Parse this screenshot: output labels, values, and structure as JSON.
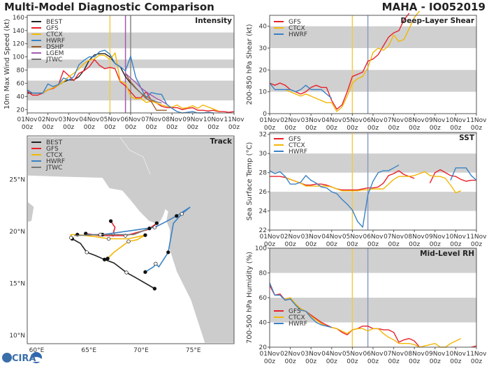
{
  "title": "Multi-Model Diagnostic Comparison",
  "storm": "MAHA - IO052019",
  "logo": "CIRA",
  "x_tick_labels": [
    [
      "01Nov",
      "00z"
    ],
    [
      "02Nov",
      "00z"
    ],
    [
      "03Nov",
      "00z"
    ],
    [
      "04Nov",
      "00z"
    ],
    [
      "05Nov",
      "00z"
    ],
    [
      "06Nov",
      "00z"
    ],
    [
      "07Nov",
      "00z"
    ],
    [
      "08Nov",
      "00z"
    ],
    [
      "09Nov",
      "00z"
    ],
    [
      "10Nov",
      "00z"
    ],
    [
      "11Nov",
      "00z"
    ]
  ],
  "colors": {
    "BEST": "#222222",
    "GFS": "#e8202a",
    "CTCX": "#f2b705",
    "HWRF": "#3a82c4",
    "DSHP": "#9a5a2a",
    "LGEM": "#a45ab0",
    "JTWC": "#777777",
    "band": "#d0d0d0",
    "land": "#cccccc"
  },
  "chart_data": [
    {
      "type": "line",
      "panel": "Intensity",
      "ylabel": "10m Max Wind Speed (kt)",
      "xlim": [
        "2019-11-01T00",
        "2019-11-11T00"
      ],
      "ylim": [
        15,
        163
      ],
      "yticks": [
        20,
        40,
        60,
        80,
        100,
        120,
        140,
        160
      ],
      "vlines": [
        {
          "time": "2019-11-05T00",
          "color": "#f2c94c"
        },
        {
          "time": "2019-11-05T18",
          "color": "#a45ab0"
        },
        {
          "time": "2019-11-06T00",
          "color": "#888888"
        }
      ],
      "series": [
        {
          "name": "BEST",
          "start": "2019-11-01T00",
          "step_hours": 6,
          "values": [
            45,
            45,
            45,
            45,
            50,
            53,
            57,
            62,
            65,
            65,
            70,
            80,
            95,
            103,
            105,
            105,
            100,
            90,
            85,
            70,
            60
          ]
        },
        {
          "name": "GFS",
          "start": "2019-11-01T00",
          "step_hours": 6,
          "values": [
            48,
            42,
            42,
            45,
            50,
            52,
            57,
            79,
            72,
            64,
            75,
            79,
            85,
            96,
            87,
            82,
            84,
            82,
            62,
            56,
            47,
            38,
            38,
            47,
            34,
            30,
            25,
            23,
            23,
            23,
            20,
            22,
            23,
            19,
            19,
            18,
            19,
            17,
            17,
            16,
            17
          ]
        },
        {
          "name": "CTCX",
          "start": "2019-11-01T18",
          "step_hours": 6,
          "values": [
            45,
            50,
            53,
            57,
            62,
            70,
            75,
            82,
            90,
            95,
            97,
            103,
            102,
            96,
            106,
            63,
            60,
            40,
            36,
            37,
            31,
            33,
            30,
            27,
            25,
            24,
            27,
            22,
            23,
            26,
            22,
            27,
            24,
            21,
            18
          ]
        },
        {
          "name": "HWRF",
          "start": "2019-11-01T00",
          "step_hours": 6,
          "values": [
            50,
            45,
            45,
            45,
            59,
            55,
            58,
            68,
            65,
            70,
            88,
            95,
            100,
            100,
            108,
            110,
            104,
            90,
            85,
            79,
            101,
            69,
            53,
            38,
            46,
            44,
            43,
            28,
            22,
            17,
            15,
            16,
            17,
            15,
            15,
            16,
            15
          ]
        },
        {
          "name": "DSHP",
          "start": "2019-11-05T18",
          "step_hours": 6,
          "values": [
            75,
            62,
            53,
            45,
            37,
            32,
            19,
            19,
            19
          ]
        },
        {
          "name": "LGEM",
          "start": "2019-11-05T18",
          "step_hours": 6,
          "values": [
            75,
            68,
            61,
            53,
            47,
            42,
            37,
            33,
            28
          ]
        },
        {
          "name": "JTWC",
          "start": "2019-11-06T00",
          "step_hours": 6,
          "values": [
            60,
            52,
            45,
            40,
            35,
            32,
            30
          ]
        }
      ]
    },
    {
      "type": "line",
      "panel": "Deep-Layer Shear",
      "ylabel": "200-850 hPa Shear (kt)",
      "xlim": [
        "2019-11-01T00",
        "2019-11-11T00"
      ],
      "ylim": [
        0,
        45
      ],
      "yticks": [
        0,
        10,
        20,
        30,
        40
      ],
      "vlines": [
        {
          "time": "2019-11-05T00",
          "color": "#f2c94c"
        },
        {
          "time": "2019-11-05T18",
          "color": "#8b9cc8"
        }
      ],
      "series": [
        {
          "name": "GFS",
          "start": "2019-11-01T00",
          "step_hours": 6,
          "values": [
            14,
            13,
            14,
            13,
            11,
            10,
            9,
            10,
            12,
            13,
            12,
            12,
            6,
            2,
            4,
            10,
            17,
            18,
            19,
            24,
            25,
            27,
            31,
            35,
            37,
            38,
            43,
            46
          ]
        },
        {
          "name": "CTCX",
          "start": "2019-11-01T18",
          "step_hours": 6,
          "values": [
            11,
            10,
            9,
            8,
            9,
            8,
            7,
            6,
            5,
            5,
            1,
            3,
            8,
            14,
            16,
            17,
            21,
            28,
            30,
            29,
            31,
            36,
            33,
            34,
            39,
            44,
            47
          ]
        },
        {
          "name": "HWRF",
          "start": "2019-11-01T00",
          "step_hours": 6,
          "values": [
            14,
            11,
            11,
            11,
            11,
            10,
            11,
            13,
            11,
            11,
            11,
            9,
            7
          ]
        }
      ]
    },
    {
      "type": "line",
      "panel": "SST",
      "ylabel": "Sea Surface Temp (°C)",
      "xlim": [
        "2019-11-01T00",
        "2019-11-11T00"
      ],
      "ylim": [
        22,
        32.2
      ],
      "yticks": [
        22,
        24,
        26,
        28,
        30,
        32
      ],
      "vlines": [
        {
          "time": "2019-11-05T00",
          "color": "#f2c94c"
        },
        {
          "time": "2019-11-05T18",
          "color": "#8b9cc8"
        }
      ],
      "series": [
        {
          "name": "GFS",
          "start": "2019-11-01T00",
          "step_hours": 6,
          "values": [
            27.6,
            27.6,
            27.6,
            27.5,
            27.3,
            27.1,
            26.9,
            26.7,
            26.7,
            26.8,
            26.8,
            26.7,
            26.5,
            26.3,
            26.2,
            26.2,
            26.2,
            26.2,
            26.3,
            26.4,
            26.4,
            26.5,
            26.9,
            27.7,
            27.9,
            28.2,
            27.8,
            27.6,
            27.4,
            null,
            null,
            26.9,
            28.0,
            28.3,
            28.0,
            27.7,
            27.6,
            27.3,
            27.1,
            27.2,
            27.2
          ]
        },
        {
          "name": "CTCX",
          "start": "2019-11-01T18",
          "step_hours": 6,
          "values": [
            27.5,
            27.3,
            27.1,
            26.9,
            26.6,
            26.6,
            26.6,
            26.6,
            26.6,
            26.5,
            26.3,
            26.1,
            26.1,
            26.1,
            26.1,
            26.2,
            26.2,
            26.3,
            26.3,
            26.3,
            26.8,
            27.3,
            27.6,
            27.6,
            27.6,
            27.7,
            27.9,
            28.1,
            27.7,
            27.6,
            27.6,
            27.4,
            26.7,
            25.9,
            26.1
          ]
        },
        {
          "name": "HWRF",
          "start": "2019-11-01T00",
          "step_hours": 6,
          "values": [
            28.2,
            27.9,
            28.1,
            27.6,
            26.8,
            26.8,
            27.0,
            27.7,
            27.2,
            26.9,
            26.5,
            26.4,
            26.0,
            25.8,
            25.2,
            24.7,
            24.1,
            22.9,
            22.3,
            25.7,
            27.1,
            28.0,
            28.2,
            28.2,
            28.5,
            28.8,
            null,
            null,
            null,
            null,
            null,
            null,
            null,
            null,
            null,
            27.2,
            28.5,
            28.5,
            28.5,
            27.7,
            27.2
          ]
        }
      ]
    },
    {
      "type": "line",
      "panel": "Mid-Level RH",
      "ylabel": "700-500 hPa Humidity (%)",
      "xlim": [
        "2019-11-01T00",
        "2019-11-11T00"
      ],
      "ylim": [
        20,
        100
      ],
      "yticks": [
        20,
        40,
        60,
        80,
        100
      ],
      "vlines": [
        {
          "time": "2019-11-05T00",
          "color": "#f2c94c"
        },
        {
          "time": "2019-11-05T18",
          "color": "#8b9cc8"
        }
      ],
      "series": [
        {
          "name": "GFS",
          "start": "2019-11-01T00",
          "step_hours": 6,
          "values": [
            70,
            62,
            63,
            58,
            59,
            55,
            51,
            49,
            46,
            43,
            40,
            38,
            36,
            35,
            32,
            30,
            34,
            35,
            37,
            37,
            35,
            35,
            34,
            34,
            32,
            24,
            26,
            27,
            25,
            20,
            null,
            null,
            null,
            null,
            null,
            null,
            null,
            null,
            null,
            20,
            21
          ]
        },
        {
          "name": "CTCX",
          "start": "2019-11-01T18",
          "step_hours": 6,
          "values": [
            59,
            60,
            55,
            51,
            49,
            45,
            42,
            39,
            37,
            36,
            35,
            33,
            31,
            34,
            35,
            35,
            33,
            35,
            35,
            31,
            28,
            26,
            23,
            23,
            23,
            22,
            20,
            21,
            22,
            23,
            20,
            20,
            23,
            25,
            27
          ]
        },
        {
          "name": "HWRF",
          "start": "2019-11-01T00",
          "step_hours": 6,
          "values": [
            72,
            62,
            62,
            58,
            59,
            54,
            50,
            49,
            44,
            40,
            38,
            37,
            36
          ]
        }
      ]
    },
    {
      "type": "map",
      "panel": "Track",
      "lon_range": [
        59.1,
        78.9
      ],
      "lat_range": [
        9.2,
        29.2
      ],
      "lon_ticks": [
        {
          "v": 60,
          "label": "60°E"
        },
        {
          "v": 65,
          "label": "65°E"
        },
        {
          "v": 70,
          "label": "70°E"
        },
        {
          "v": 75,
          "label": "75°E"
        }
      ],
      "lat_ticks": [
        {
          "v": 25,
          "label": "25°N"
        },
        {
          "v": 20,
          "label": "20°N"
        },
        {
          "v": 15,
          "label": "15°N"
        },
        {
          "v": 10,
          "label": "10°N"
        }
      ],
      "tracks": [
        {
          "name": "BEST",
          "points": [
            [
              71.3,
              14.5
            ],
            [
              69.4,
              15.6
            ],
            [
              68.6,
              16.05
            ],
            [
              67.4,
              16.97
            ],
            [
              66.5,
              17.3
            ],
            [
              65.6,
              17.7
            ],
            [
              64.8,
              18.0
            ],
            [
              64.2,
              18.85
            ],
            [
              63.4,
              19.3
            ]
          ]
        },
        {
          "name": "GFS",
          "points": [
            [
              67.1,
              21.0
            ],
            [
              67.5,
              20.4
            ],
            [
              67.3,
              19.7
            ]
          ]
        },
        {
          "name": "GFS",
          "points": [
            [
              64.7,
              19.8
            ],
            [
              66.0,
              19.6
            ],
            [
              68.5,
              19.6
            ],
            [
              70.7,
              20.2
            ],
            [
              71.5,
              20.8
            ]
          ]
        },
        {
          "name": "CTCX",
          "points": [
            [
              66.8,
              17.4
            ],
            [
              67.4,
              18.0
            ],
            [
              68.8,
              19.05
            ],
            [
              69.6,
              19.2
            ],
            [
              70.4,
              19.65
            ],
            [
              68.8,
              19.3
            ],
            [
              66.9,
              19.3
            ],
            [
              65.6,
              19.5
            ],
            [
              63.9,
              19.7
            ],
            [
              63.3,
              19.7
            ],
            [
              63.3,
              19.4
            ]
          ]
        },
        {
          "name": "HWRF",
          "points": [
            [
              70.4,
              16.1
            ],
            [
              71.2,
              16.6
            ],
            [
              71.4,
              16.9
            ],
            [
              71.7,
              16.6
            ],
            [
              72.6,
              18.0
            ],
            [
              73.1,
              20.8
            ],
            [
              73.9,
              21.7
            ],
            [
              74.7,
              22.35
            ],
            [
              73.4,
              21.5
            ],
            [
              72.3,
              20.9
            ],
            [
              71.3,
              20.4
            ],
            [
              68.1,
              19.95
            ],
            [
              66.3,
              19.7
            ],
            [
              64.8,
              19.7
            ]
          ]
        },
        {
          "name": "JTWC",
          "points": [
            [
              70.8,
              20.3
            ],
            [
              69.3,
              19.7
            ],
            [
              66.1,
              19.7
            ],
            [
              63.6,
              19.6
            ]
          ]
        }
      ]
    }
  ]
}
